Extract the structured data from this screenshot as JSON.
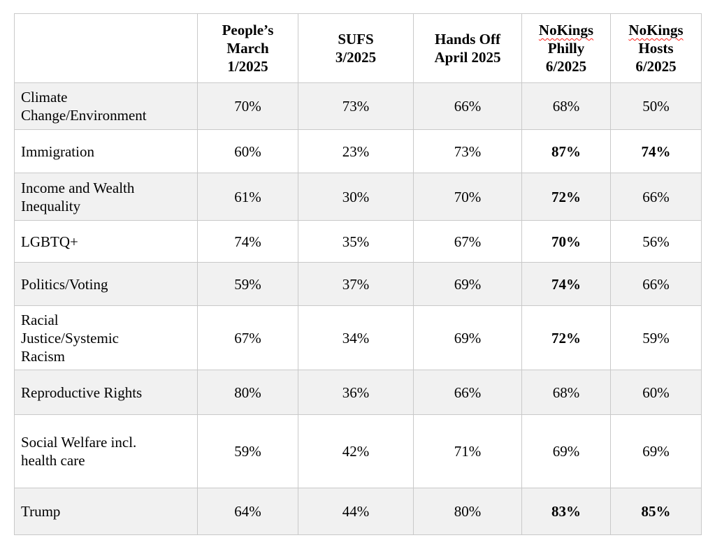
{
  "table": {
    "style": {
      "border_color": "#c9c9c9",
      "shaded_row_bg": "#f1f1f1",
      "text_color": "#000000",
      "squiggle_color": "#ff2019"
    },
    "header": {
      "corner_label": "",
      "columns": [
        {
          "label": "People’s March 1/2025",
          "lines": [
            "People’s",
            "March",
            "1/2025"
          ],
          "misspelled_first_line": false
        },
        {
          "label": "SUFS 3/2025",
          "lines": [
            "SUFS",
            "3/2025"
          ],
          "misspelled_first_line": false
        },
        {
          "label": "Hands Off April 2025",
          "lines": [
            "Hands Off",
            "April 2025"
          ],
          "misspelled_first_line": false
        },
        {
          "label": "NoKings Philly 6/2025",
          "lines": [
            "NoKings",
            "Philly",
            "6/2025"
          ],
          "misspelled_first_line": true
        },
        {
          "label": "NoKings Hosts 6/2025",
          "lines": [
            "NoKings",
            "Hosts",
            "6/2025"
          ],
          "misspelled_first_line": true
        }
      ]
    },
    "rows": [
      {
        "label": "Climate Change/Environment",
        "label_lines": [
          "Climate",
          "Change/Environment"
        ],
        "values": [
          "70%",
          "73%",
          "66%",
          "68%",
          "50%"
        ],
        "bold": [
          false,
          false,
          false,
          false,
          false
        ],
        "shaded": true
      },
      {
        "label": "Immigration",
        "label_lines": [
          "Immigration"
        ],
        "values": [
          "60%",
          "23%",
          "73%",
          "87%",
          "74%"
        ],
        "bold": [
          false,
          false,
          false,
          true,
          true
        ],
        "shaded": false
      },
      {
        "label": "Income and Wealth Inequality",
        "label_lines": [
          "Income and Wealth",
          "Inequality"
        ],
        "values": [
          "61%",
          "30%",
          "70%",
          "72%",
          "66%"
        ],
        "bold": [
          false,
          false,
          false,
          true,
          false
        ],
        "shaded": true
      },
      {
        "label": "LGBTQ+",
        "label_lines": [
          "LGBTQ+"
        ],
        "values": [
          "74%",
          "35%",
          "67%",
          "70%",
          "56%"
        ],
        "bold": [
          false,
          false,
          false,
          true,
          false
        ],
        "shaded": false
      },
      {
        "label": "Politics/Voting",
        "label_lines": [
          "Politics/Voting"
        ],
        "values": [
          "59%",
          "37%",
          "69%",
          "74%",
          "66%"
        ],
        "bold": [
          false,
          false,
          false,
          true,
          false
        ],
        "shaded": true
      },
      {
        "label": "Racial Justice/Systemic Racism",
        "label_lines": [
          "Racial",
          "Justice/Systemic",
          "Racism"
        ],
        "values": [
          "67%",
          "34%",
          "69%",
          "72%",
          "59%"
        ],
        "bold": [
          false,
          false,
          false,
          true,
          false
        ],
        "shaded": false
      },
      {
        "label": "Reproductive Rights",
        "label_lines": [
          "Reproductive Rights"
        ],
        "values": [
          "80%",
          "36%",
          "66%",
          "68%",
          "60%"
        ],
        "bold": [
          false,
          false,
          false,
          false,
          false
        ],
        "shaded": true
      },
      {
        "label": "Social Welfare incl. health care",
        "label_lines": [
          "Social Welfare incl.",
          "health care"
        ],
        "values": [
          "59%",
          "42%",
          "71%",
          "69%",
          "69%"
        ],
        "bold": [
          false,
          false,
          false,
          false,
          false
        ],
        "shaded": false
      },
      {
        "label": "Trump",
        "label_lines": [
          "Trump"
        ],
        "values": [
          "64%",
          "44%",
          "80%",
          "83%",
          "85%"
        ],
        "bold": [
          false,
          false,
          false,
          true,
          true
        ],
        "shaded": true
      }
    ]
  },
  "chart_data": {
    "type": "table",
    "title": "",
    "columns": [
      "People’s March 1/2025",
      "SUFS 3/2025",
      "Hands Off April 2025",
      "NoKings Philly 6/2025",
      "NoKings Hosts 6/2025"
    ],
    "row_categories": [
      "Climate Change/Environment",
      "Immigration",
      "Income and Wealth Inequality",
      "LGBTQ+",
      "Politics/Voting",
      "Racial Justice/Systemic Racism",
      "Reproductive Rights",
      "Social Welfare incl. health care",
      "Trump"
    ],
    "values_percent": [
      [
        70,
        73,
        66,
        68,
        50
      ],
      [
        60,
        23,
        73,
        87,
        74
      ],
      [
        61,
        30,
        70,
        72,
        66
      ],
      [
        74,
        35,
        67,
        70,
        56
      ],
      [
        59,
        37,
        69,
        74,
        66
      ],
      [
        67,
        34,
        69,
        72,
        59
      ],
      [
        80,
        36,
        66,
        68,
        60
      ],
      [
        59,
        42,
        71,
        69,
        69
      ],
      [
        64,
        44,
        80,
        83,
        85
      ]
    ],
    "bold_values_note": "Bold cells: Immigration NoKings Philly 87% and NoKings Hosts 74%; Income and Wealth Inequality NoKings Philly 72%; LGBTQ+ NoKings Philly 70%; Politics/Voting NoKings Philly 74%; Racial Justice/Systemic Racism NoKings Philly 72%; Trump NoKings Philly 83% and NoKings Hosts 85%"
  }
}
